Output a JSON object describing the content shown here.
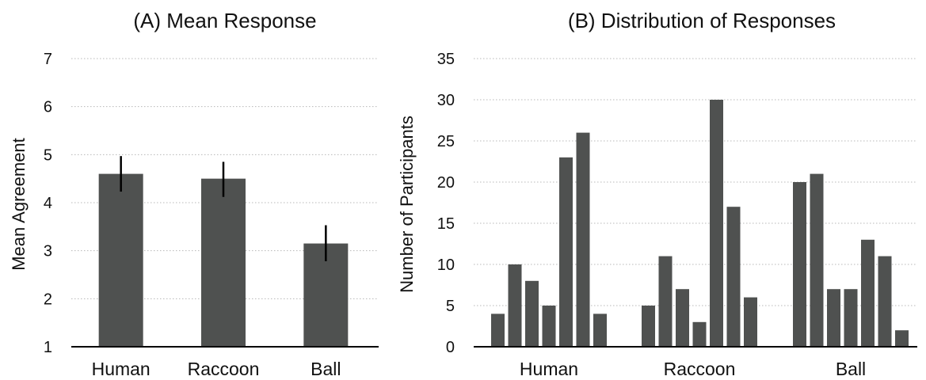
{
  "chart_data": [
    {
      "type": "bar",
      "title": "(A) Mean Response",
      "xlabel": "",
      "ylabel": "Mean Agreement",
      "categories": [
        "Human",
        "Raccoon",
        "Ball"
      ],
      "values": [
        4.6,
        4.5,
        3.15
      ],
      "error_low": [
        4.23,
        4.12,
        2.78
      ],
      "error_high": [
        4.97,
        4.85,
        3.53
      ],
      "ylim": [
        1,
        7
      ],
      "yticks": [
        1,
        2,
        3,
        4,
        5,
        6,
        7
      ],
      "grid": true,
      "color": "#4f5150"
    },
    {
      "type": "bar",
      "title": "(B) Distribution of Responses",
      "xlabel": "",
      "ylabel": "Number of Participants",
      "categories": [
        "Human",
        "Raccoon",
        "Ball"
      ],
      "values": [
        [
          4,
          10,
          8,
          5,
          23,
          26,
          4
        ],
        [
          5,
          11,
          7,
          3,
          30,
          17,
          6
        ],
        [
          20,
          21,
          7,
          7,
          13,
          11,
          2
        ]
      ],
      "ylim": [
        0,
        35
      ],
      "yticks": [
        0,
        5,
        10,
        15,
        20,
        25,
        30,
        35
      ],
      "grid": true,
      "color": "#4f5150"
    }
  ]
}
